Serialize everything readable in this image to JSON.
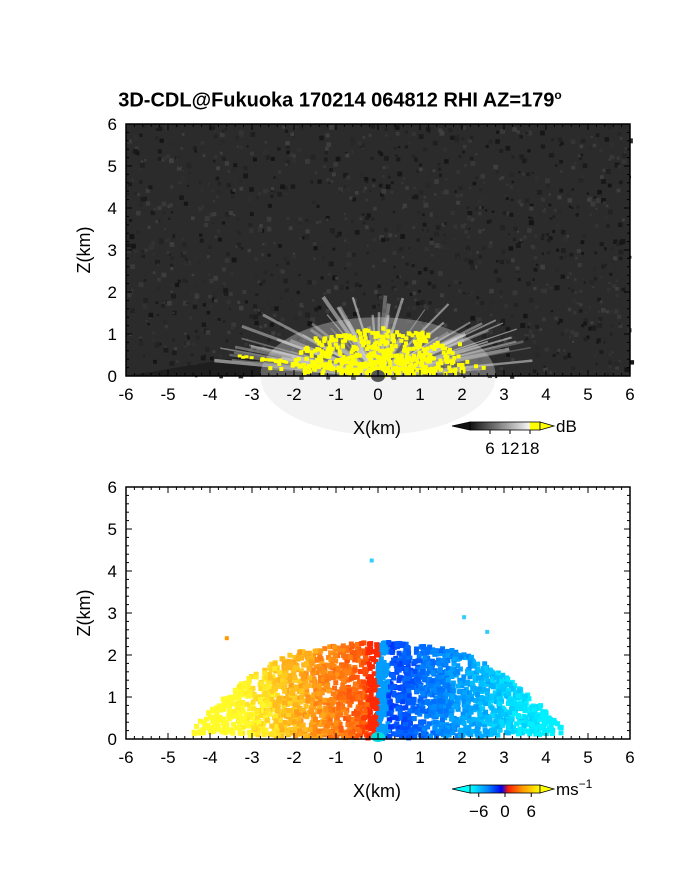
{
  "title": "3D-CDL@Fukuoka 170214 064812 RHI AZ=179",
  "title_sup": "o",
  "chart_data": [
    {
      "type": "heatmap",
      "panel": "backscatter",
      "xlabel": "X(km)",
      "ylabel": "Z(km)",
      "xlim": [
        -6,
        6
      ],
      "ylim": [
        0,
        6
      ],
      "xticks": [
        "-6",
        "-5",
        "-4",
        "-3",
        "-2",
        "-1",
        "0",
        "1",
        "2",
        "3",
        "4",
        "5",
        "6"
      ],
      "yticks": [
        "0",
        "1",
        "2",
        "3",
        "4",
        "5",
        "6"
      ],
      "colorbar": {
        "unit": "dB",
        "ticks": [
          "6",
          "12",
          "18"
        ],
        "range": [
          0,
          21
        ]
      },
      "colors": {
        "background": "#2b2b2b",
        "saturated": "#ffff00"
      }
    },
    {
      "type": "heatmap",
      "panel": "radial-velocity",
      "xlabel": "X(km)",
      "ylabel": "Z(km)",
      "xlim": [
        -6,
        6
      ],
      "ylim": [
        0,
        6
      ],
      "xticks": [
        "-6",
        "-5",
        "-4",
        "-3",
        "-2",
        "-1",
        "0",
        "1",
        "2",
        "3",
        "4",
        "5",
        "6"
      ],
      "yticks": [
        "0",
        "1",
        "2",
        "3",
        "4",
        "5",
        "6"
      ],
      "colorbar": {
        "unit": "ms",
        "unit_sup": "−1",
        "ticks": [
          "−6",
          "0",
          "6"
        ],
        "range": [
          -8,
          8
        ]
      },
      "colors": {
        "negative": "#0044ff",
        "zero": "#ff2200",
        "positive": "#ffee00"
      }
    }
  ]
}
